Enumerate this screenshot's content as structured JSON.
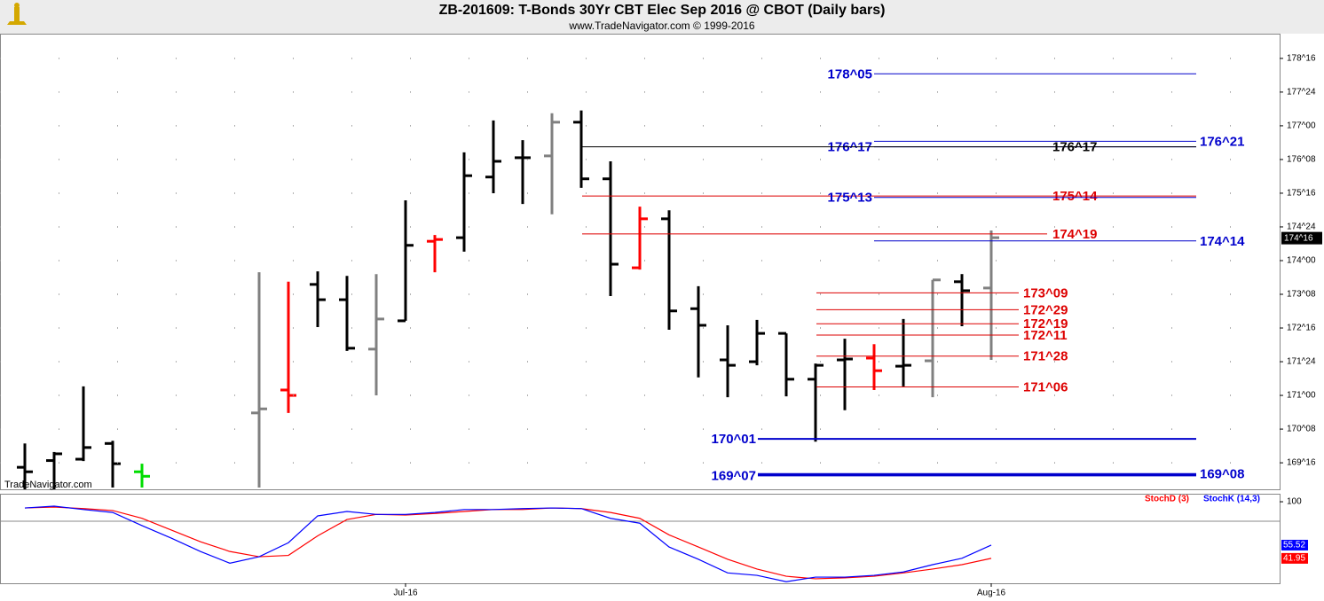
{
  "chart_data": [
    {
      "type": "ohlc",
      "title": "ZB-201609:  T-Bonds 30Yr CBT Elec Sep 2016 @ CBOT  (Daily bars)",
      "subtitle": "www.TradeNavigator.com © 1999-2016",
      "watermark": "TradeNavigator.com",
      "open": [
        169.4,
        169.55,
        169.58,
        169.93,
        169.3,
        null,
        null,
        null,
        170.61,
        171.12,
        173.47,
        173.13,
        172.03,
        172.66,
        174.43,
        174.51,
        175.86,
        176.29,
        176.33,
        177.08,
        175.82,
        173.84,
        174.93,
        172.93,
        171.79,
        171.75,
        172.38,
        171.36,
        171.79,
        171.83,
        171.65,
        171.77,
        173.53,
        173.39
      ],
      "high": [
        169.93,
        169.74,
        171.2,
        169.99,
        169.48,
        null,
        null,
        null,
        173.74,
        173.53,
        173.76,
        173.66,
        173.7,
        175.34,
        174.57,
        176.41,
        177.12,
        176.68,
        177.28,
        177.34,
        176.21,
        175.2,
        175.12,
        173.43,
        172.56,
        172.68,
        172.38,
        171.71,
        172.26,
        172.14,
        172.7,
        173.57,
        173.7,
        174.67
      ],
      "low": [
        168.9,
        168.9,
        169.54,
        168.95,
        168.95,
        null,
        null,
        null,
        168.95,
        170.61,
        172.52,
        171.99,
        171.0,
        172.66,
        173.74,
        174.2,
        175.5,
        175.26,
        175.03,
        175.62,
        173.21,
        173.8,
        172.46,
        171.4,
        170.96,
        171.67,
        170.98,
        169.97,
        170.67,
        171.12,
        171.2,
        170.96,
        172.54,
        171.79
      ],
      "close": [
        169.3,
        169.7,
        169.84,
        169.48,
        169.2,
        null,
        null,
        null,
        170.7,
        171.0,
        173.13,
        172.05,
        172.7,
        174.34,
        174.47,
        175.89,
        176.21,
        176.29,
        177.08,
        175.82,
        173.92,
        174.93,
        172.88,
        172.56,
        171.67,
        172.38,
        171.36,
        171.67,
        171.81,
        171.55,
        171.67,
        173.57,
        173.33,
        174.51
      ],
      "colors": [
        "#000000",
        "#000000",
        "#000000",
        "#000000",
        "#00dd00",
        null,
        null,
        null,
        "#808080",
        "#ff0000",
        "#000000",
        "#000000",
        "#808080",
        "#000000",
        "#ff0000",
        "#000000",
        "#000000",
        "#000000",
        "#808080",
        "#000000",
        "#000000",
        "#ff0000",
        "#000000",
        "#000000",
        "#000000",
        "#000000",
        "#000000",
        "#000000",
        "#000000",
        "#ff0000",
        "#000000",
        "#808080",
        "#000000",
        "#808080"
      ],
      "ylim": [
        168.91,
        179.05
      ],
      "yticks": [
        {
          "value": 178.5,
          "label": "178^16"
        },
        {
          "value": 177.75,
          "label": "177^24"
        },
        {
          "value": 177,
          "label": "177^00"
        },
        {
          "value": 176.25,
          "label": "176^08"
        },
        {
          "value": 175.5,
          "label": "175^16"
        },
        {
          "value": 174.75,
          "label": "174^24"
        },
        {
          "value": 174,
          "label": "174^00"
        },
        {
          "value": 173.25,
          "label": "173^08"
        },
        {
          "value": 172.5,
          "label": "172^16"
        },
        {
          "value": 171.75,
          "label": "171^24"
        },
        {
          "value": 171,
          "label": "171^00"
        },
        {
          "value": 170.25,
          "label": "170^08"
        },
        {
          "value": 169.5,
          "label": "169^16"
        }
      ],
      "grid": true,
      "last_price": {
        "value": 174.5,
        "label": "174^16"
      },
      "levels": [
        {
          "label": "178^05",
          "value": 178.15625,
          "color": "#0000cc"
        },
        {
          "label": "176^21",
          "value": 176.65625,
          "color": "#0000cc"
        },
        {
          "label": "176^17",
          "value": 176.53125,
          "color": "#0000cc"
        },
        {
          "label": "176^17",
          "value": 176.53125,
          "color": "#000000"
        },
        {
          "label": "175^14",
          "value": 175.4375,
          "color": "#dd0000"
        },
        {
          "label": "175^13",
          "value": 175.40625,
          "color": "#0000cc"
        },
        {
          "label": "174^19",
          "value": 174.59375,
          "color": "#dd0000"
        },
        {
          "label": "174^14",
          "value": 174.4375,
          "color": "#0000cc"
        },
        {
          "label": "173^09",
          "value": 173.28125,
          "color": "#dd0000"
        },
        {
          "label": "172^29",
          "value": 172.90625,
          "color": "#dd0000"
        },
        {
          "label": "172^19",
          "value": 172.59375,
          "color": "#dd0000"
        },
        {
          "label": "172^11",
          "value": 172.34375,
          "color": "#dd0000"
        },
        {
          "label": "171^28",
          "value": 171.875,
          "color": "#dd0000"
        },
        {
          "label": "171^06",
          "value": 171.1875,
          "color": "#dd0000"
        },
        {
          "label": "170^01",
          "value": 170.03125,
          "color": "#0000cc"
        },
        {
          "label": "169^08",
          "value": 169.25,
          "color": "#0000cc"
        },
        {
          "label": "169^07",
          "value": 169.21875,
          "color": "#0000cc"
        }
      ]
    },
    {
      "type": "line",
      "categories": [
        null,
        null,
        null,
        null,
        null,
        null,
        null,
        null,
        null,
        null,
        null,
        null,
        null,
        "Jul-16",
        null,
        null,
        null,
        null,
        null,
        null,
        null,
        null,
        null,
        null,
        null,
        null,
        null,
        null,
        null,
        null,
        null,
        null,
        null,
        "Aug-16"
      ],
      "series": [
        {
          "name": "StochD (3)",
          "color": "#ff0000",
          "values": [
            93.6,
            94.5,
            93,
            91,
            83,
            71,
            59,
            49,
            43.6,
            45,
            65,
            81.8,
            87,
            86.4,
            88,
            90,
            92,
            92,
            93.6,
            93,
            89,
            83,
            66,
            53.6,
            41,
            31,
            23.6,
            21,
            22,
            23.6,
            27,
            31,
            35.5,
            41.95
          ]
        },
        {
          "name": "StochK (14,3)",
          "color": "#0000ff",
          "values": [
            93.6,
            95.5,
            92,
            89,
            75.5,
            62.7,
            49,
            37,
            43.6,
            58,
            85.5,
            90,
            87,
            87,
            89,
            92,
            92,
            93,
            93.6,
            93,
            83,
            78,
            53.6,
            41,
            27,
            24.5,
            18,
            22.7,
            22.7,
            24.5,
            28,
            35.5,
            42,
            55.52
          ]
        }
      ],
      "ylim": [
        16.4,
        107.3
      ],
      "yticks": [
        100
      ],
      "hlines": [
        80
      ],
      "last_value_label": true
    }
  ]
}
